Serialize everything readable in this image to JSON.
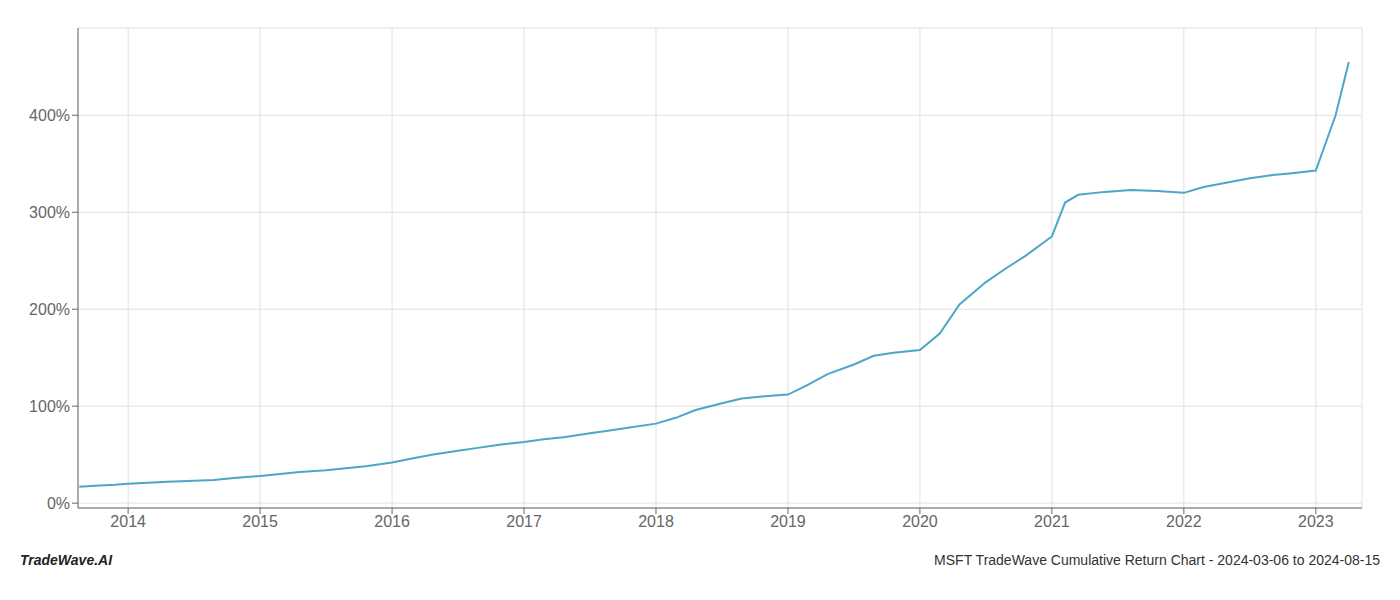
{
  "chart_data": {
    "type": "line",
    "title": "MSFT TradeWave Cumulative Return Chart - 2024-03-06 to 2024-08-15",
    "annotations": [
      "TradeWave.AI"
    ],
    "color": "#4da6c8",
    "grid": true,
    "xlim": [
      2013.62,
      2023.35
    ],
    "xticks": [
      2014,
      2015,
      2016,
      2017,
      2018,
      2019,
      2020,
      2021,
      2022,
      2023
    ],
    "ylim": [
      -5,
      490
    ],
    "yticks": [
      {
        "value": 0,
        "label": "0%"
      },
      {
        "value": 100,
        "label": "100%"
      },
      {
        "value": 200,
        "label": "200%"
      },
      {
        "value": 300,
        "label": "300%"
      },
      {
        "value": 400,
        "label": "400%"
      }
    ],
    "x": [
      2013.63,
      2013.75,
      2013.9,
      2014.0,
      2014.15,
      2014.3,
      2014.5,
      2014.65,
      2014.8,
      2015.0,
      2015.15,
      2015.3,
      2015.5,
      2015.65,
      2015.8,
      2016.0,
      2016.15,
      2016.3,
      2016.5,
      2016.65,
      2016.8,
      2017.0,
      2017.15,
      2017.3,
      2017.5,
      2017.65,
      2017.8,
      2018.0,
      2018.15,
      2018.3,
      2018.5,
      2018.65,
      2018.8,
      2019.0,
      2019.15,
      2019.3,
      2019.5,
      2019.65,
      2019.8,
      2020.0,
      2020.15,
      2020.3,
      2020.5,
      2020.65,
      2020.8,
      2021.0,
      2021.1,
      2021.2,
      2021.4,
      2021.6,
      2021.8,
      2022.0,
      2022.15,
      2022.3,
      2022.5,
      2022.65,
      2022.8,
      2023.0,
      2023.15,
      2023.25
    ],
    "values": [
      17,
      18,
      19,
      20,
      21,
      22,
      23,
      24,
      26,
      28,
      30,
      32,
      34,
      36,
      38,
      42,
      46,
      50,
      54,
      57,
      60,
      63,
      66,
      68,
      72,
      75,
      78,
      82,
      88,
      96,
      103,
      108,
      110,
      112,
      122,
      133,
      143,
      152,
      155,
      158,
      175,
      205,
      228,
      242,
      255,
      275,
      310,
      318,
      321,
      323,
      322,
      320,
      326,
      330,
      335,
      338,
      340,
      343,
      400,
      455
    ]
  }
}
